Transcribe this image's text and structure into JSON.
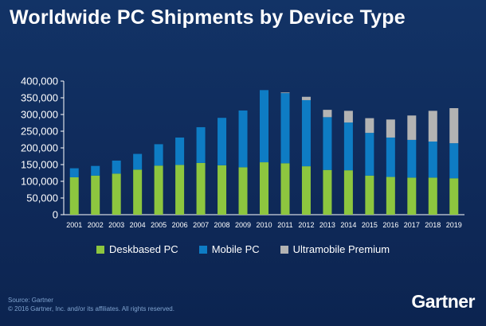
{
  "title": "Worldwide PC Shipments by Device Type",
  "source_line1": "Source: Gartner",
  "source_line2": "© 2016 Gartner, Inc. and/or its affiliates. All rights reserved.",
  "logo": "Gartner",
  "colors": {
    "deskbased": "#8dc63f",
    "mobile": "#0e7cc4",
    "ultramobile": "#b3b3b3",
    "background": "#0f2a5a",
    "axis": "#ffffff"
  },
  "chart_data": {
    "type": "bar",
    "stacked": true,
    "title": "Worldwide PC Shipments by Device Type",
    "xlabel": "",
    "ylabel": "",
    "ylim": [
      0,
      400000
    ],
    "yticks": [
      "0",
      "50,000",
      "100,000",
      "150,000",
      "200,000",
      "250,000",
      "300,000",
      "350,000",
      "400,000"
    ],
    "ytick_values": [
      0,
      50000,
      100000,
      150000,
      200000,
      250000,
      300000,
      350000,
      400000
    ],
    "legend_position": "bottom",
    "categories": [
      "2001",
      "2002",
      "2003",
      "2004",
      "2005",
      "2006",
      "2007",
      "2008",
      "2009",
      "2010",
      "2011",
      "2012",
      "2013",
      "2014",
      "2015",
      "2016",
      "2017",
      "2018",
      "2019"
    ],
    "series": [
      {
        "name": "Deskbased PC",
        "color_key": "deskbased",
        "values": [
          112000,
          117000,
          123000,
          135000,
          147000,
          149000,
          155000,
          148000,
          142000,
          157000,
          154000,
          145000,
          134000,
          133000,
          117000,
          113000,
          111000,
          111000,
          109000
        ]
      },
      {
        "name": "Mobile PC",
        "color_key": "mobile",
        "values": [
          27000,
          29000,
          39000,
          47000,
          64000,
          82000,
          107000,
          142000,
          170000,
          216000,
          210000,
          198000,
          158000,
          143000,
          128000,
          118000,
          113000,
          108000,
          105000
        ]
      },
      {
        "name": "Ultramobile Premium",
        "color_key": "ultramobile",
        "values": [
          0,
          0,
          0,
          0,
          0,
          0,
          0,
          0,
          0,
          0,
          2000,
          10000,
          22000,
          35000,
          44000,
          54000,
          73000,
          92000,
          105000
        ]
      }
    ]
  }
}
